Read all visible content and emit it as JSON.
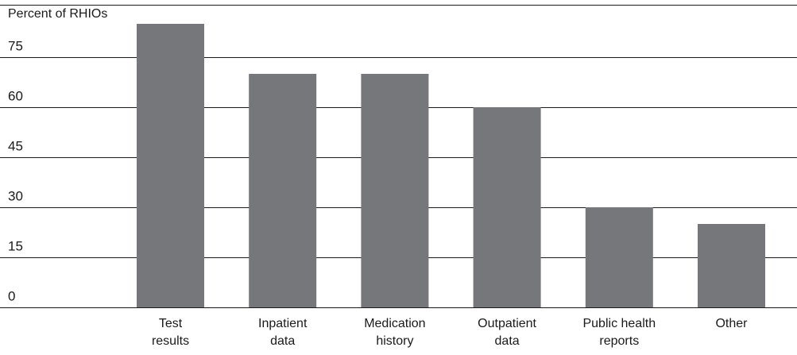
{
  "chart_data": {
    "type": "bar",
    "title": "",
    "xlabel": "",
    "ylabel": "Percent of RHIOs",
    "ylim": [
      0,
      86
    ],
    "yticks": [
      0,
      15,
      30,
      45,
      60,
      75
    ],
    "grid": true,
    "categories": [
      [
        "Test",
        "results"
      ],
      [
        "Inpatient",
        "data"
      ],
      [
        "Medication",
        "history"
      ],
      [
        "Outpatient",
        "data"
      ],
      [
        "Public health",
        "reports"
      ],
      [
        "Other"
      ]
    ],
    "values": [
      85,
      70,
      70,
      60,
      30,
      25
    ],
    "colors": {
      "bar": "#76777a",
      "grid": "#1a1a1a",
      "text": "#1a1a1a"
    }
  }
}
